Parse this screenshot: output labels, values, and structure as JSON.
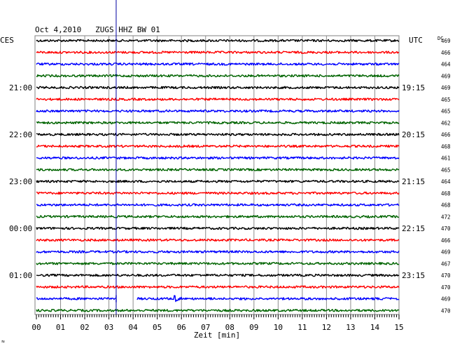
{
  "chart_data": {
    "type": "line",
    "title": "Oct 4,2010   ZUGS HHZ BW 01",
    "left_axis_label": "CES",
    "right_axis_label": "UTC",
    "dc_label": "DC",
    "xlabel": "Zeit [min]",
    "x_ticks": [
      "00",
      "01",
      "02",
      "03",
      "04",
      "05",
      "06",
      "07",
      "08",
      "09",
      "10",
      "11",
      "12",
      "13",
      "14",
      "15"
    ],
    "xlim": [
      0,
      15
    ],
    "grid": true,
    "rows": 24,
    "row_colors": [
      "#000000",
      "#ff0000",
      "#0000ff",
      "#006400"
    ],
    "local_hour_labels": [
      {
        "row": 4,
        "text": "21:00"
      },
      {
        "row": 8,
        "text": "22:00"
      },
      {
        "row": 12,
        "text": "23:00"
      },
      {
        "row": 16,
        "text": "00:00"
      },
      {
        "row": 20,
        "text": "01:00"
      }
    ],
    "utc_hour_labels": [
      {
        "row": 4,
        "text": "19:15"
      },
      {
        "row": 8,
        "text": "20:15"
      },
      {
        "row": 12,
        "text": "21:15"
      },
      {
        "row": 16,
        "text": "22:15"
      },
      {
        "row": 20,
        "text": "23:15"
      }
    ],
    "dc_offsets": [
      469,
      466,
      464,
      469,
      469,
      465,
      465,
      462,
      466,
      468,
      461,
      465,
      464,
      468,
      468,
      472,
      470,
      466,
      469,
      467,
      470,
      470,
      469,
      470
    ],
    "events": [
      {
        "row": 22,
        "type": "data_gap",
        "start_min": 3.3,
        "end_min": 4.15
      },
      {
        "row": 22,
        "type": "earthquake",
        "onset_min": 5.65
      }
    ],
    "marker_time_min": 3.3
  },
  "footer_mark": "≈"
}
